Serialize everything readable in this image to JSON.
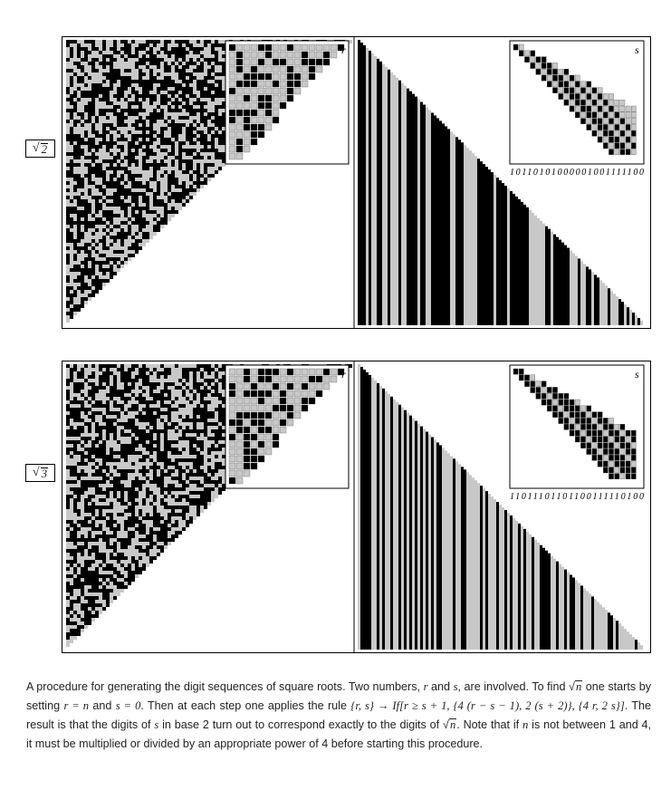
{
  "panels": [
    {
      "label_radical": "√",
      "label_arg": "2",
      "left_inset_label": "r",
      "right_inset_label": "s",
      "s_digits": "10110101000001001111100"
    },
    {
      "label_radical": "√",
      "label_arg": "3",
      "left_inset_label": "r",
      "right_inset_label": "s",
      "s_digits": "11011101101100111110100"
    }
  ],
  "caption": {
    "line1": "A procedure for generating the digit sequences of square roots. Two numbers,",
    "r": "r",
    "and": "and",
    "s": "s",
    "are_involved": ", are involved.",
    "to_find": "To find",
    "n": "n",
    "one_starts": "one starts by setting",
    "r_eq_n": "r = n",
    "and2": "and",
    "s_eq_0": "s = 0",
    "then": ". Then at each step one applies the rule",
    "rule": "{r, s} → If[r ≥ s + 1, {4 (r − s − 1), 2 (s + 2)}, {4 r, 2 s}]",
    "result": ". The result is that the digits of",
    "s2": "s",
    "in_base": "in base 2 turn out to correspond exactly to the digits of",
    "note": ". Note that if",
    "n2": "n",
    "not_between": "is not between 1 and 4, it must be multiplied or divided by an appropriate power of 4 before starting this procedure."
  },
  "colors": {
    "black": "#000000",
    "gray": "#c8c8c8",
    "white": "#ffffff"
  }
}
